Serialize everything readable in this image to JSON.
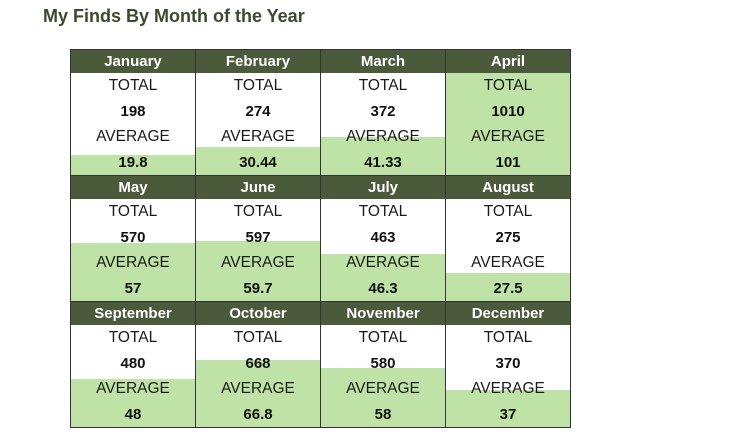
{
  "title": "My Finds By Month of the Year",
  "labels": {
    "total": "TOTAL",
    "average": "AVERAGE"
  },
  "colors": {
    "header_bg": "#4a5a3b",
    "header_text": "#ffffff",
    "fill": "#bfe3a6",
    "title": "#3b4a2d"
  },
  "chart_data": {
    "type": "table",
    "fill_max_total": 1010,
    "months": [
      {
        "name": "January",
        "total": "198",
        "average": "19.8"
      },
      {
        "name": "February",
        "total": "274",
        "average": "30.44"
      },
      {
        "name": "March",
        "total": "372",
        "average": "41.33"
      },
      {
        "name": "April",
        "total": "1010",
        "average": "101"
      },
      {
        "name": "May",
        "total": "570",
        "average": "57"
      },
      {
        "name": "June",
        "total": "597",
        "average": "59.7"
      },
      {
        "name": "July",
        "total": "463",
        "average": "46.3"
      },
      {
        "name": "August",
        "total": "275",
        "average": "27.5"
      },
      {
        "name": "September",
        "total": "480",
        "average": "48"
      },
      {
        "name": "October",
        "total": "668",
        "average": "66.8"
      },
      {
        "name": "November",
        "total": "580",
        "average": "58"
      },
      {
        "name": "December",
        "total": "370",
        "average": "37"
      }
    ]
  }
}
